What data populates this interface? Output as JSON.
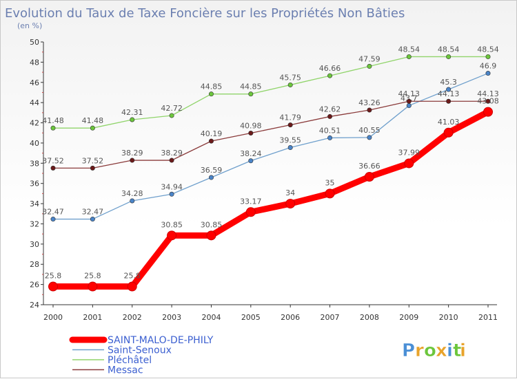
{
  "chart_data": {
    "type": "line",
    "title": "Evolution du Taux de Taxe Foncière sur les Propriétés Non Bâties",
    "subtitle": "(en %)",
    "x": [
      "2000",
      "2001",
      "2002",
      "2003",
      "2004",
      "2005",
      "2006",
      "2007",
      "2008",
      "2009",
      "2010",
      "2011"
    ],
    "ylim": [
      24,
      50
    ],
    "yticks": [
      "24",
      "26",
      "28",
      "30",
      "32",
      "34",
      "36",
      "38",
      "40",
      "42",
      "44",
      "46",
      "48",
      "50"
    ],
    "grid": false,
    "legend_placement": "bottom-left",
    "series": [
      {
        "name": "Saint-Senoux",
        "color": "#6e9fcc",
        "point_color": "#4a84c8",
        "values": [
          32.47,
          32.47,
          34.28,
          34.94,
          36.59,
          38.24,
          39.55,
          40.51,
          40.55,
          43.7,
          45.3,
          46.9
        ],
        "labels": [
          "32.47",
          "32.47",
          "34.28",
          "34.94",
          "36.59",
          "38.24",
          "39.55",
          "40.51",
          "40.55",
          "43.7",
          "45.3",
          "46.9"
        ]
      },
      {
        "name": "Pléchâtel",
        "color": "#90d46a",
        "point_color": "#6cc63c",
        "values": [
          41.48,
          41.48,
          42.31,
          42.72,
          44.85,
          44.85,
          45.75,
          46.66,
          47.59,
          48.54,
          48.54,
          48.54
        ],
        "labels": [
          "41.48",
          "41.48",
          "42.31",
          "42.72",
          "44.85",
          "44.85",
          "45.75",
          "46.66",
          "47.59",
          "48.54",
          "48.54",
          "48.54"
        ]
      },
      {
        "name": "Messac",
        "color": "#8a3a3a",
        "point_color": "#6b1a1a",
        "values": [
          37.52,
          37.52,
          38.29,
          38.29,
          40.19,
          40.98,
          41.79,
          42.62,
          43.26,
          44.13,
          44.13,
          44.13
        ],
        "labels": [
          "37.52",
          "37.52",
          "38.29",
          "38.29",
          "40.19",
          "40.98",
          "41.79",
          "42.62",
          "43.26",
          "44.13",
          "44.13",
          "44.13"
        ]
      },
      {
        "name": "SAINT-MALO-DE-PHILY",
        "color": "#ff0000",
        "point_color": "#ff0000",
        "values": [
          25.8,
          25.8,
          25.8,
          30.85,
          30.85,
          33.17,
          34,
          35,
          36.66,
          37.99,
          41.03,
          43.08
        ],
        "labels": [
          "25.8",
          "25.8",
          "25.8",
          "30.85",
          "30.85",
          "33.17",
          "34",
          "35",
          "36.66",
          "37.99",
          "41.03",
          "43.08"
        ]
      }
    ],
    "legend": [
      {
        "name": "SAINT-MALO-DE-PHILY",
        "color": "#ff0000",
        "text_color": "#3b5fd0"
      },
      {
        "name": "Saint-Senoux",
        "color": "#6e9fcc",
        "text_color": "#3b5fd0"
      },
      {
        "name": "Pléchâtel",
        "color": "#90d46a",
        "text_color": "#3b5fd0"
      },
      {
        "name": "Messac",
        "color": "#8a3a3a",
        "text_color": "#3b5fd0"
      }
    ]
  },
  "logo": {
    "letters": [
      "P",
      "r",
      "o",
      "x",
      "i",
      "t",
      "i"
    ],
    "colors": [
      "#4a8fd6",
      "#e8a32b",
      "#6cc63c",
      "#e8a32b",
      "#4a8fd6",
      "#6cc63c",
      "#e8a32b"
    ]
  }
}
